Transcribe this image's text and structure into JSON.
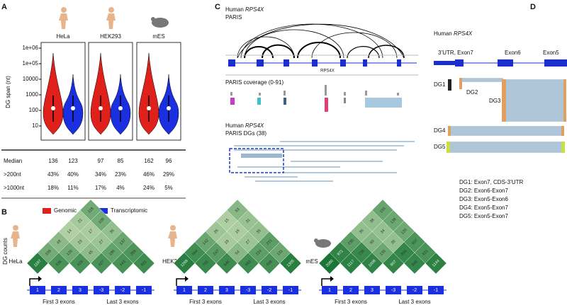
{
  "panel_a": {
    "label": "A",
    "samples": [
      "HeLa",
      "HEK293",
      "mES"
    ],
    "y_axis_label": "DG span (nt)",
    "y_ticks": [
      "1e+06",
      "1e+05",
      "10000",
      "1000",
      "100",
      "10"
    ],
    "table": {
      "rows": [
        [
          "Median",
          136,
          123,
          97,
          85,
          162,
          96
        ],
        [
          ">200nt",
          "43%",
          "40%",
          "34%",
          "23%",
          "46%",
          "29%"
        ],
        [
          ">1000nt",
          "18%",
          "11%",
          "17%",
          "4%",
          "24%",
          "5%"
        ]
      ]
    },
    "legend": [
      "Genomic",
      "Transcriptomic"
    ]
  },
  "panel_b": {
    "label": "B",
    "y_label": "DG counts",
    "maps": [
      {
        "sample": "HeLa",
        "rows": [
          [
            118
          ],
          [
            21,
            109
          ],
          [
            14,
            17,
            36
          ],
          [
            48,
            23,
            27,
            137
          ],
          [
            109,
            120,
            45,
            186,
            359
          ],
          [
            1197,
            436,
            428,
            427,
            443,
            601
          ]
        ]
      },
      {
        "sample": "HEK293",
        "rows": [
          [
            53
          ],
          [
            15,
            31
          ],
          [
            26,
            16,
            35
          ],
          [
            142,
            19,
            27,
            221
          ],
          [
            564,
            247,
            54,
            224,
            131
          ],
          [
            1269,
            705,
            646,
            583,
            498,
            1305
          ]
        ]
      },
      {
        "sample": "mES",
        "rows": [
          [
            155
          ],
          [
            38,
            138
          ],
          [
            36,
            34,
            120
          ],
          [
            230,
            60,
            35,
            407
          ],
          [
            971,
            738,
            135,
            846,
            421
          ],
          [
            2080,
            1117,
            1008,
            907,
            846,
            1144
          ]
        ]
      }
    ],
    "exon_labels": [
      "1",
      "2",
      "3",
      "-3",
      "-2",
      "-1"
    ],
    "group_labels": [
      "First 3 exons",
      "Last 3 exons"
    ]
  },
  "panel_c": {
    "label": "C",
    "title_1": "Human",
    "gene_1": "RPS4X",
    "title_1b": "PARIS",
    "gene_track": "RPS4X",
    "coverage": "PARIS coverage (0-91)",
    "title_2": "Human",
    "gene_2": "RPS4X",
    "title_2b": "PARIS DGs (38)"
  },
  "panel_d": {
    "label": "D",
    "title": "Human",
    "gene": "RPS4X",
    "exons": [
      "3’UTR, Exon7",
      "Exon6",
      "Exon5"
    ],
    "dgs": [
      "DG1",
      "DG2",
      "DG3",
      "DG4",
      "DG5"
    ],
    "notes": [
      "DG1: Exon7, CDS-3’UTR",
      "DG2: Exon6-Exon7",
      "DG3: Exon5-Exon6",
      "DG4: Exon5-Exon7",
      "DG5: Exon5-Exon7"
    ]
  }
}
